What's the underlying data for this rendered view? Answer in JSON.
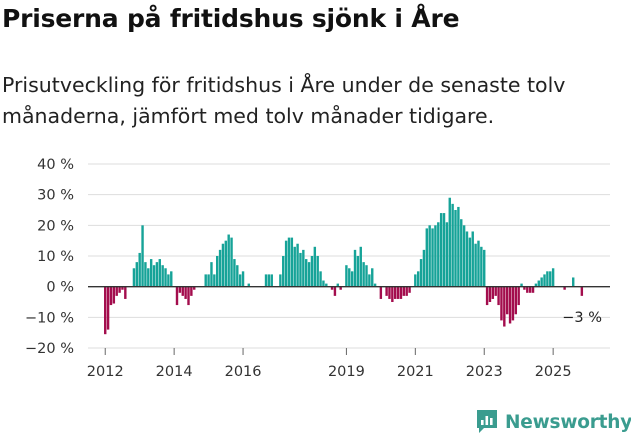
{
  "header": {
    "title": "Priserna på fritidshus sjönk i Åre",
    "subtitle": "Prisutveckling för fritidshus i Åre under de senaste tolv månaderna, jämfört med tolv månader tidigare."
  },
  "brand": {
    "name": "Newsworthy"
  },
  "colors": {
    "positive": "#16a398",
    "negative": "#a30d4d",
    "zero_line": "#333333",
    "grid": "#dddddd",
    "brand": "#3a9c8f"
  },
  "chart_data": {
    "type": "bar",
    "ylabel": "",
    "xlabel": "",
    "ylim": [
      -20,
      40
    ],
    "yticks": [
      40,
      30,
      20,
      10,
      0,
      -10,
      -20
    ],
    "ytick_labels": [
      "40 %",
      "30 %",
      "20 %",
      "10 %",
      "0 %",
      "−10 %",
      "−20 %"
    ],
    "xlim": [
      2011.5,
      2026.65
    ],
    "xticks": [
      2012,
      2014,
      2016,
      2019,
      2021,
      2023,
      2025
    ],
    "xtick_labels": [
      "2012",
      "2014",
      "2016",
      "2019",
      "2021",
      "2023",
      "2025"
    ],
    "annotation": {
      "text": "−3 %",
      "value": -3
    },
    "start": 2012.0,
    "step": 0.08333,
    "values": [
      -15.5,
      -14,
      -6,
      -5.5,
      -3,
      -2,
      -1,
      -4,
      0,
      0,
      6,
      8,
      11,
      20,
      8,
      6,
      9,
      7,
      8,
      9,
      7,
      6,
      4,
      5,
      0,
      -6,
      -2,
      -3,
      -4,
      -6,
      -3,
      -1,
      0,
      0,
      0,
      4,
      4,
      8,
      4,
      10,
      12,
      14,
      15,
      17,
      16,
      9,
      7,
      4,
      5,
      0,
      1,
      0,
      0,
      0,
      0,
      0,
      4,
      4,
      4,
      0,
      0,
      4,
      10,
      15,
      16,
      16,
      13,
      14,
      11,
      12,
      9,
      8,
      10,
      13,
      10,
      5,
      2,
      1,
      0,
      -1,
      -3,
      1,
      -1,
      0,
      7,
      6,
      5,
      12,
      10,
      13,
      8,
      7,
      4,
      6,
      1,
      0,
      -4,
      0,
      -3,
      -4,
      -5,
      -4,
      -4,
      -4,
      -3,
      -3,
      -2,
      0,
      4,
      5,
      9,
      12,
      19,
      20,
      19,
      20,
      21,
      24,
      24,
      21,
      29,
      27,
      25,
      26,
      22,
      20,
      18,
      16,
      18,
      14,
      15,
      13,
      12,
      -6,
      -5,
      -4,
      -3,
      -6,
      -11,
      -13,
      -9,
      -12,
      -11,
      -9,
      -6,
      1,
      -1,
      -2,
      -2,
      -2,
      1,
      2,
      3,
      4,
      5,
      5,
      6,
      0,
      0,
      0,
      -1,
      0,
      0,
      3,
      0,
      0,
      -3
    ]
  }
}
